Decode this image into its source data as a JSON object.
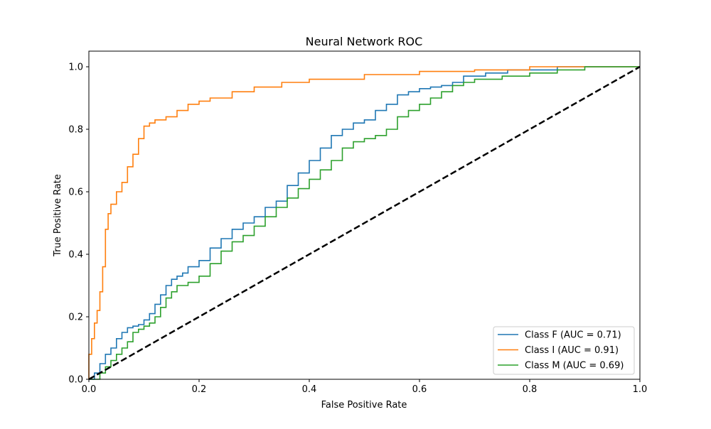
{
  "chart_data": {
    "type": "line",
    "title": "Neural Network ROC",
    "xlabel": "False Positive Rate",
    "ylabel": "True Positive Rate",
    "xlim": [
      0.0,
      1.0
    ],
    "ylim": [
      0.0,
      1.05
    ],
    "xticks": [
      "0.0",
      "0.2",
      "0.4",
      "0.6",
      "0.8",
      "1.0"
    ],
    "yticks": [
      "0.0",
      "0.2",
      "0.4",
      "0.6",
      "0.8",
      "1.0"
    ],
    "grid": false,
    "legend_position": "lower-right",
    "series": [
      {
        "name": "Class F (AUC = 0.71)",
        "color": "#1f77b4",
        "points": [
          [
            0.0,
            0.0
          ],
          [
            0.01,
            0.02
          ],
          [
            0.02,
            0.05
          ],
          [
            0.03,
            0.08
          ],
          [
            0.04,
            0.1
          ],
          [
            0.05,
            0.13
          ],
          [
            0.06,
            0.15
          ],
          [
            0.07,
            0.165
          ],
          [
            0.08,
            0.17
          ],
          [
            0.09,
            0.175
          ],
          [
            0.1,
            0.19
          ],
          [
            0.11,
            0.21
          ],
          [
            0.12,
            0.24
          ],
          [
            0.13,
            0.27
          ],
          [
            0.14,
            0.3
          ],
          [
            0.15,
            0.32
          ],
          [
            0.16,
            0.33
          ],
          [
            0.17,
            0.34
          ],
          [
            0.18,
            0.36
          ],
          [
            0.2,
            0.38
          ],
          [
            0.22,
            0.42
          ],
          [
            0.24,
            0.45
          ],
          [
            0.26,
            0.48
          ],
          [
            0.28,
            0.5
          ],
          [
            0.3,
            0.52
          ],
          [
            0.32,
            0.55
          ],
          [
            0.34,
            0.57
          ],
          [
            0.36,
            0.62
          ],
          [
            0.38,
            0.66
          ],
          [
            0.4,
            0.7
          ],
          [
            0.42,
            0.74
          ],
          [
            0.44,
            0.78
          ],
          [
            0.46,
            0.8
          ],
          [
            0.48,
            0.82
          ],
          [
            0.5,
            0.83
          ],
          [
            0.52,
            0.86
          ],
          [
            0.54,
            0.88
          ],
          [
            0.56,
            0.91
          ],
          [
            0.58,
            0.92
          ],
          [
            0.6,
            0.93
          ],
          [
            0.62,
            0.935
          ],
          [
            0.64,
            0.94
          ],
          [
            0.66,
            0.95
          ],
          [
            0.68,
            0.97
          ],
          [
            0.72,
            0.98
          ],
          [
            0.76,
            0.99
          ],
          [
            0.85,
            1.0
          ],
          [
            1.0,
            1.0
          ]
        ]
      },
      {
        "name": "Class I (AUC = 0.91)",
        "color": "#ff7f0e",
        "points": [
          [
            0.0,
            0.0
          ],
          [
            0.0,
            0.08
          ],
          [
            0.005,
            0.13
          ],
          [
            0.01,
            0.18
          ],
          [
            0.015,
            0.22
          ],
          [
            0.02,
            0.28
          ],
          [
            0.025,
            0.36
          ],
          [
            0.03,
            0.48
          ],
          [
            0.035,
            0.53
          ],
          [
            0.04,
            0.56
          ],
          [
            0.05,
            0.6
          ],
          [
            0.06,
            0.63
          ],
          [
            0.07,
            0.68
          ],
          [
            0.08,
            0.72
          ],
          [
            0.09,
            0.77
          ],
          [
            0.1,
            0.81
          ],
          [
            0.11,
            0.82
          ],
          [
            0.12,
            0.83
          ],
          [
            0.14,
            0.84
          ],
          [
            0.16,
            0.86
          ],
          [
            0.18,
            0.88
          ],
          [
            0.2,
            0.89
          ],
          [
            0.22,
            0.9
          ],
          [
            0.26,
            0.92
          ],
          [
            0.3,
            0.935
          ],
          [
            0.35,
            0.95
          ],
          [
            0.4,
            0.96
          ],
          [
            0.5,
            0.975
          ],
          [
            0.6,
            0.985
          ],
          [
            0.7,
            0.99
          ],
          [
            0.8,
            1.0
          ],
          [
            1.0,
            1.0
          ]
        ]
      },
      {
        "name": "Class M (AUC = 0.69)",
        "color": "#2ca02c",
        "points": [
          [
            0.0,
            0.0
          ],
          [
            0.02,
            0.02
          ],
          [
            0.03,
            0.04
          ],
          [
            0.04,
            0.06
          ],
          [
            0.05,
            0.08
          ],
          [
            0.06,
            0.1
          ],
          [
            0.07,
            0.12
          ],
          [
            0.08,
            0.15
          ],
          [
            0.09,
            0.16
          ],
          [
            0.1,
            0.17
          ],
          [
            0.11,
            0.18
          ],
          [
            0.12,
            0.2
          ],
          [
            0.13,
            0.23
          ],
          [
            0.14,
            0.26
          ],
          [
            0.15,
            0.28
          ],
          [
            0.16,
            0.3
          ],
          [
            0.18,
            0.31
          ],
          [
            0.2,
            0.33
          ],
          [
            0.22,
            0.37
          ],
          [
            0.24,
            0.41
          ],
          [
            0.26,
            0.44
          ],
          [
            0.28,
            0.46
          ],
          [
            0.3,
            0.49
          ],
          [
            0.32,
            0.52
          ],
          [
            0.34,
            0.55
          ],
          [
            0.36,
            0.58
          ],
          [
            0.38,
            0.61
          ],
          [
            0.4,
            0.64
          ],
          [
            0.42,
            0.67
          ],
          [
            0.44,
            0.7
          ],
          [
            0.46,
            0.74
          ],
          [
            0.48,
            0.76
          ],
          [
            0.5,
            0.77
          ],
          [
            0.52,
            0.78
          ],
          [
            0.54,
            0.8
          ],
          [
            0.56,
            0.84
          ],
          [
            0.58,
            0.86
          ],
          [
            0.6,
            0.88
          ],
          [
            0.62,
            0.9
          ],
          [
            0.64,
            0.92
          ],
          [
            0.66,
            0.94
          ],
          [
            0.68,
            0.95
          ],
          [
            0.7,
            0.96
          ],
          [
            0.75,
            0.97
          ],
          [
            0.8,
            0.98
          ],
          [
            0.85,
            0.99
          ],
          [
            0.9,
            1.0
          ],
          [
            1.0,
            1.0
          ]
        ]
      },
      {
        "name": "",
        "color": "#000000",
        "dashed": true,
        "points": [
          [
            0.0,
            0.0
          ],
          [
            1.0,
            1.0
          ]
        ]
      }
    ]
  }
}
